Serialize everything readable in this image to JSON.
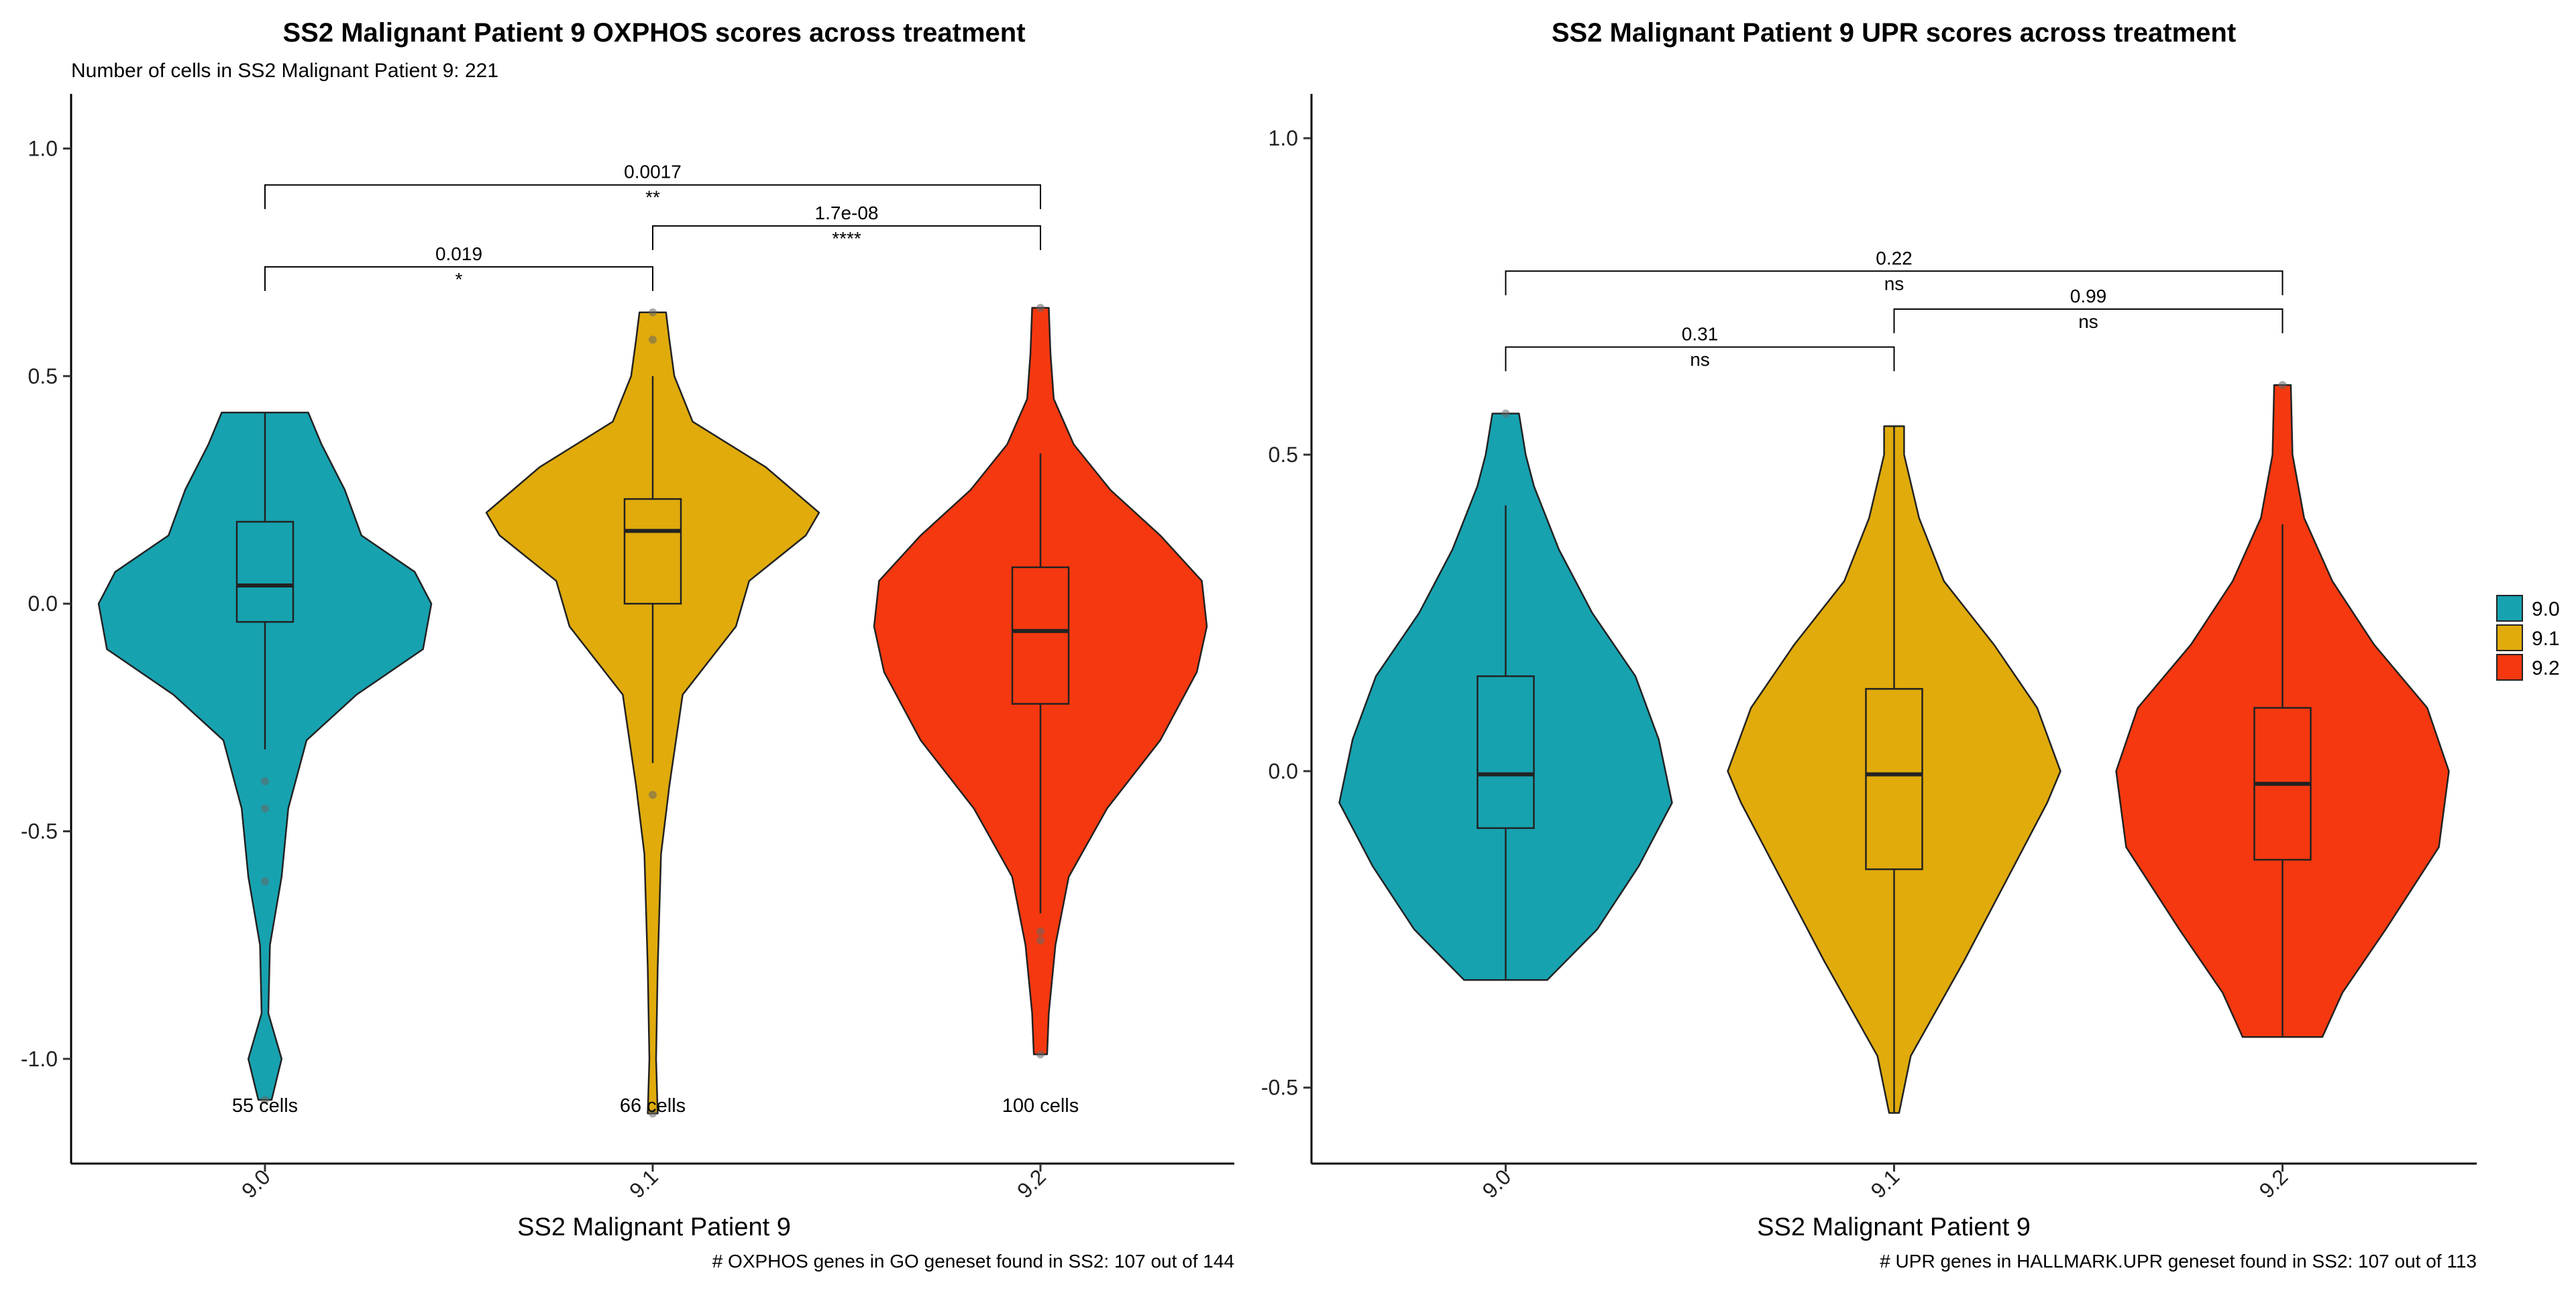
{
  "colors": {
    "9.0": "#17a2b0",
    "9.1": "#e0ab0b",
    "9.2": "#f5380f",
    "outline": "#222222"
  },
  "legend": {
    "entries": [
      "9.0",
      "9.1",
      "9.2"
    ]
  },
  "chart_data": [
    {
      "type": "violin",
      "title": "SS2 Malignant Patient 9 OXPHOS scores across treatment",
      "subtitle": "Number of cells in SS2 Malignant Patient 9: 221",
      "xlabel": "SS2 Malignant Patient 9",
      "ylabel": "",
      "caption": "# OXPHOS genes in GO geneset found in SS2: 107 out of 144",
      "categories": [
        "9.0",
        "9.1",
        "9.2"
      ],
      "ylim": [
        -1.23,
        1.12
      ],
      "yticks": [
        -1.0,
        -0.5,
        0.0,
        0.5,
        1.0
      ],
      "ytick_labels": [
        "-1.0",
        "-0.5",
        "0.0",
        "0.5",
        "1.0"
      ],
      "groups": [
        {
          "name": "9.0",
          "cell_count_label": "55 cells",
          "box": {
            "q1": -0.04,
            "median": 0.04,
            "q3": 0.18,
            "whisker_low": -0.32,
            "whisker_high": 0.42
          },
          "outliers": [
            -0.39,
            -0.45,
            -0.61,
            -1.09
          ],
          "density": [
            [
              -1.09,
              0.04
            ],
            [
              -1.0,
              0.1
            ],
            [
              -0.9,
              0.02
            ],
            [
              -0.75,
              0.03
            ],
            [
              -0.6,
              0.1
            ],
            [
              -0.45,
              0.14
            ],
            [
              -0.3,
              0.25
            ],
            [
              -0.2,
              0.55
            ],
            [
              -0.1,
              0.95
            ],
            [
              0.0,
              1.0
            ],
            [
              0.07,
              0.9
            ],
            [
              0.15,
              0.58
            ],
            [
              0.25,
              0.48
            ],
            [
              0.35,
              0.34
            ],
            [
              0.42,
              0.26
            ]
          ]
        },
        {
          "name": "9.1",
          "cell_count_label": "66 cells",
          "box": {
            "q1": 0.0,
            "median": 0.16,
            "q3": 0.23,
            "whisker_low": -0.35,
            "whisker_high": 0.5
          },
          "outliers": [
            -0.42,
            0.58,
            0.64,
            -1.12
          ],
          "density": [
            [
              -1.12,
              0.03
            ],
            [
              -1.0,
              0.02
            ],
            [
              -0.8,
              0.03
            ],
            [
              -0.55,
              0.05
            ],
            [
              -0.4,
              0.1
            ],
            [
              -0.2,
              0.18
            ],
            [
              -0.05,
              0.5
            ],
            [
              0.05,
              0.58
            ],
            [
              0.15,
              0.92
            ],
            [
              0.2,
              1.0
            ],
            [
              0.3,
              0.68
            ],
            [
              0.4,
              0.24
            ],
            [
              0.5,
              0.13
            ],
            [
              0.58,
              0.1
            ],
            [
              0.64,
              0.08
            ]
          ]
        },
        {
          "name": "9.2",
          "cell_count_label": "100 cells",
          "box": {
            "q1": -0.22,
            "median": -0.06,
            "q3": 0.08,
            "whisker_low": -0.68,
            "whisker_high": 0.33
          },
          "outliers": [
            -0.72,
            -0.74,
            0.65,
            -0.99
          ],
          "density": [
            [
              -0.99,
              0.04
            ],
            [
              -0.9,
              0.05
            ],
            [
              -0.75,
              0.09
            ],
            [
              -0.6,
              0.17
            ],
            [
              -0.45,
              0.4
            ],
            [
              -0.3,
              0.72
            ],
            [
              -0.15,
              0.94
            ],
            [
              -0.05,
              1.0
            ],
            [
              0.05,
              0.97
            ],
            [
              0.15,
              0.72
            ],
            [
              0.25,
              0.42
            ],
            [
              0.35,
              0.2
            ],
            [
              0.45,
              0.08
            ],
            [
              0.55,
              0.06
            ],
            [
              0.65,
              0.05
            ]
          ]
        }
      ],
      "comparisons": [
        {
          "from": "9.0",
          "to": "9.1",
          "p_value": "0.019",
          "significance": "*",
          "level": 0.74
        },
        {
          "from": "9.1",
          "to": "9.2",
          "p_value": "1.7e-08",
          "significance": "****",
          "level": 0.83
        },
        {
          "from": "9.0",
          "to": "9.2",
          "p_value": "0.0017",
          "significance": "**",
          "level": 0.92
        }
      ]
    },
    {
      "type": "violin",
      "title": "SS2 Malignant Patient 9 UPR scores across treatment",
      "subtitle": "",
      "xlabel": "SS2 Malignant Patient 9",
      "ylabel": "",
      "caption": "# UPR genes in HALLMARK.UPR geneset found in SS2: 107 out of 113",
      "categories": [
        "9.0",
        "9.1",
        "9.2"
      ],
      "ylim": [
        -0.62,
        1.07
      ],
      "yticks": [
        -0.5,
        0.0,
        0.5,
        1.0
      ],
      "ytick_labels": [
        "-0.5",
        "0.0",
        "0.5",
        "1.0"
      ],
      "groups": [
        {
          "name": "9.0",
          "box": {
            "q1": -0.09,
            "median": -0.005,
            "q3": 0.15,
            "whisker_low": -0.33,
            "whisker_high": 0.42
          },
          "outliers": [
            0.565
          ],
          "density": [
            [
              -0.33,
              0.25
            ],
            [
              -0.25,
              0.55
            ],
            [
              -0.15,
              0.8
            ],
            [
              -0.05,
              1.0
            ],
            [
              0.05,
              0.92
            ],
            [
              0.15,
              0.78
            ],
            [
              0.25,
              0.52
            ],
            [
              0.35,
              0.32
            ],
            [
              0.45,
              0.17
            ],
            [
              0.5,
              0.12
            ],
            [
              0.565,
              0.08
            ]
          ]
        },
        {
          "name": "9.1",
          "box": {
            "q1": -0.155,
            "median": -0.005,
            "q3": 0.13,
            "whisker_low": -0.54,
            "whisker_high": 0.545
          },
          "outliers": [],
          "density": [
            [
              -0.54,
              0.03
            ],
            [
              -0.45,
              0.1
            ],
            [
              -0.3,
              0.42
            ],
            [
              -0.15,
              0.72
            ],
            [
              -0.05,
              0.92
            ],
            [
              0.0,
              1.0
            ],
            [
              0.1,
              0.86
            ],
            [
              0.2,
              0.6
            ],
            [
              0.3,
              0.3
            ],
            [
              0.4,
              0.15
            ],
            [
              0.5,
              0.06
            ],
            [
              0.545,
              0.06
            ]
          ]
        },
        {
          "name": "9.2",
          "box": {
            "q1": -0.14,
            "median": -0.02,
            "q3": 0.1,
            "whisker_low": -0.42,
            "whisker_high": 0.39
          },
          "outliers": [
            0.61
          ],
          "density": [
            [
              -0.42,
              0.24
            ],
            [
              -0.35,
              0.36
            ],
            [
              -0.25,
              0.62
            ],
            [
              -0.12,
              0.94
            ],
            [
              0.0,
              1.0
            ],
            [
              0.1,
              0.87
            ],
            [
              0.2,
              0.55
            ],
            [
              0.3,
              0.3
            ],
            [
              0.4,
              0.13
            ],
            [
              0.5,
              0.06
            ],
            [
              0.61,
              0.05
            ]
          ]
        }
      ],
      "comparisons": [
        {
          "from": "9.0",
          "to": "9.1",
          "p_value": "0.31",
          "significance": "ns",
          "level": 0.67
        },
        {
          "from": "9.1",
          "to": "9.2",
          "p_value": "0.99",
          "significance": "ns",
          "level": 0.73
        },
        {
          "from": "9.0",
          "to": "9.2",
          "p_value": "0.22",
          "significance": "ns",
          "level": 0.79
        }
      ]
    }
  ]
}
